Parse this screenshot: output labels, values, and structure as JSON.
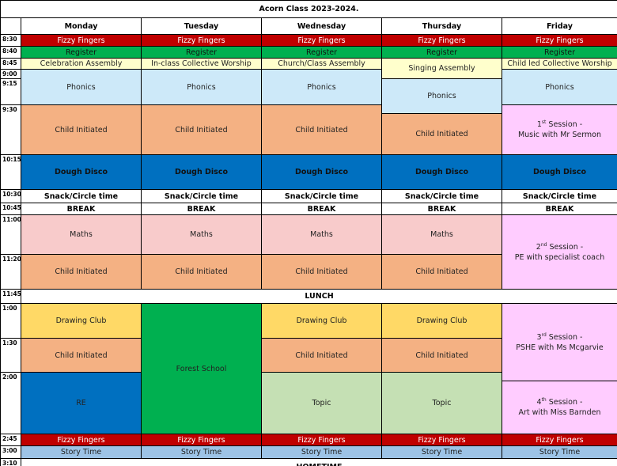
{
  "title": "Acorn Class 2023-2024.",
  "days": [
    "Monday",
    "Tuesday",
    "Wednesday",
    "Thursday",
    "Friday"
  ],
  "times": [
    "8:30",
    "8:40",
    "8:45",
    "9:00",
    "9:15",
    "9:30",
    "10:15",
    "10:30",
    "10:45",
    "11:00",
    "11:20",
    "11:45",
    "1:00",
    "1:30",
    "2:00",
    "2:45",
    "3:00",
    "3:10"
  ],
  "cells": [
    {
      "text": "Fizzy Fingers"
    },
    {
      "text": "Fizzy Fingers"
    },
    {
      "text": "Fizzy Fingers"
    },
    {
      "text": "Fizzy Fingers"
    },
    {
      "text": "Fizzy Fingers"
    },
    {
      "text": "Register"
    },
    {
      "text": "Register"
    },
    {
      "text": "Register"
    },
    {
      "text": "Register"
    },
    {
      "text": "Register"
    },
    {
      "text": "Celebration Assembly"
    },
    {
      "text": "In-class Collective Worship"
    },
    {
      "text": "Church/Class Assembly"
    },
    {
      "text": "Singing Assembly"
    },
    {
      "text": "Child led Collective Worship"
    },
    {
      "text": "Phonics"
    },
    {
      "text": "Phonics"
    },
    {
      "text": "Phonics"
    },
    {
      "text": "Phonics"
    },
    {
      "text": "Phonics"
    },
    {
      "text": "Child Initiated"
    },
    {
      "text": "Child Initiated"
    },
    {
      "text": "Child Initiated"
    },
    {
      "text": "Child Initiated"
    },
    {
      "number": "1",
      "suffix": "st",
      "text": " Session -",
      "detail": "Music with Mr Sermon"
    },
    {
      "text": "Dough Disco"
    },
    {
      "text": "Dough Disco"
    },
    {
      "text": "Dough Disco"
    },
    {
      "text": "Dough Disco"
    },
    {
      "text": "Dough Disco"
    },
    {
      "text": "Snack/Circle time"
    },
    {
      "text": "Snack/Circle time"
    },
    {
      "text": "Snack/Circle time"
    },
    {
      "text": "Snack/Circle time"
    },
    {
      "text": "Snack/Circle time"
    },
    {
      "text": "BREAK"
    },
    {
      "text": "BREAK"
    },
    {
      "text": "BREAK"
    },
    {
      "text": "BREAK"
    },
    {
      "text": "BREAK"
    },
    {
      "text": "Maths"
    },
    {
      "text": "Maths"
    },
    {
      "text": "Maths"
    },
    {
      "text": "Maths"
    },
    {
      "number": "2",
      "suffix": "nd",
      "text": " Session -",
      "detail": "PE with specialist coach"
    },
    {
      "text": "Child Initiated"
    },
    {
      "text": "Child Initiated"
    },
    {
      "text": "Child Initiated"
    },
    {
      "text": "Child Initiated"
    },
    {
      "text": "LUNCH"
    },
    {
      "text": "Drawing Club"
    },
    {
      "text": "Forest School"
    },
    {
      "text": "Drawing Club"
    },
    {
      "text": "Drawing Club"
    },
    {
      "number": "3",
      "suffix": "rd",
      "text": " Session -",
      "detail": "PSHE with Ms Mcgarvie"
    },
    {
      "text": "Child Initiated"
    },
    {
      "text": "Child Initiated"
    },
    {
      "text": "Child Initiated"
    },
    {
      "text": "RE"
    },
    {
      "text": "Topic"
    },
    {
      "text": "Topic"
    },
    {
      "number": "4",
      "suffix": "th",
      "text": " Session -",
      "detail": "Art with Miss Barnden"
    },
    {
      "text": "Fizzy Fingers"
    },
    {
      "text": "Fizzy Fingers"
    },
    {
      "text": "Fizzy Fingers"
    },
    {
      "text": "Fizzy Fingers"
    },
    {
      "text": "Fizzy Fingers"
    },
    {
      "text": "Story Time"
    },
    {
      "text": "Story Time"
    },
    {
      "text": "Story Time"
    },
    {
      "text": "Story Time"
    },
    {
      "text": "Story Time"
    },
    {
      "text": "HOMETIME"
    }
  ]
}
